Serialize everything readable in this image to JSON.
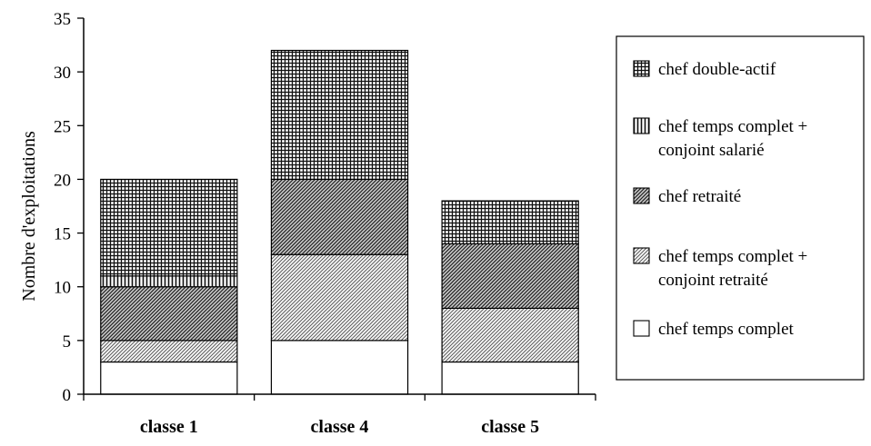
{
  "chart_data": {
    "type": "bar",
    "stacked": true,
    "categories": [
      "classe 1",
      "classe 4",
      "classe 5"
    ],
    "ylabel": "Nombre d'exploitations",
    "xlabel": "",
    "title": "",
    "ylim": [
      0,
      35
    ],
    "yticks": [
      0,
      5,
      10,
      15,
      20,
      25,
      30,
      35
    ],
    "grid": false,
    "legend_position": "right",
    "series": [
      {
        "name": "chef temps complet",
        "name_lines": [
          "chef temps complet"
        ],
        "pattern": "none",
        "values": [
          3,
          5,
          3
        ]
      },
      {
        "name": "chef temps complet + conjoint retraité",
        "name_lines": [
          "chef temps complet +",
          "conjoint retraité"
        ],
        "pattern": "diagonal-fine",
        "values": [
          2,
          8,
          5
        ]
      },
      {
        "name": "chef retraité",
        "name_lines": [
          "chef retraité"
        ],
        "pattern": "diagonal-dense",
        "values": [
          5,
          7,
          6
        ]
      },
      {
        "name": "chef temps complet + conjoint salarié",
        "name_lines": [
          "chef temps complet +",
          "conjoint salarié"
        ],
        "pattern": "vertical-lines",
        "values": [
          1,
          0,
          0
        ]
      },
      {
        "name": "chef double-actif",
        "name_lines": [
          "chef double-actif"
        ],
        "pattern": "crosshatch",
        "values": [
          9,
          12,
          4
        ]
      }
    ]
  }
}
